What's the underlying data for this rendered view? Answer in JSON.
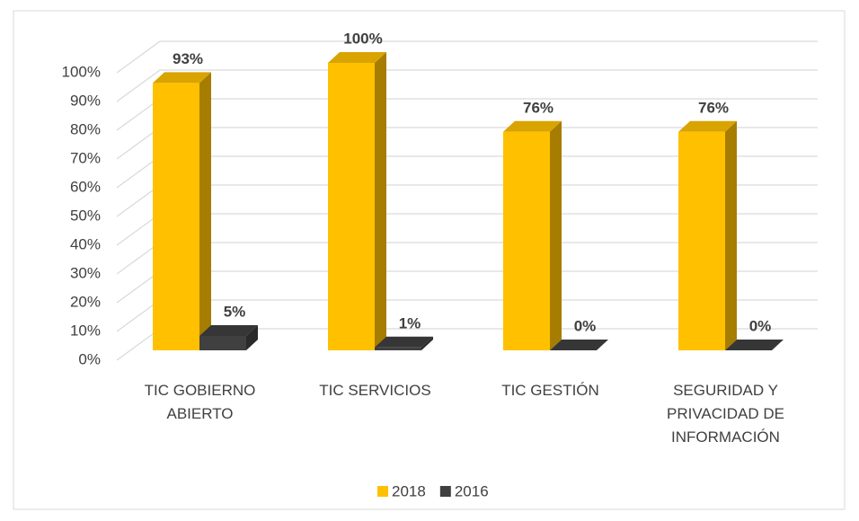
{
  "chart_data": {
    "type": "bar3d",
    "categories": [
      "TIC GOBIERNO ABIERTO",
      "TIC SERVICIOS",
      "TIC GESTIÓN",
      "SEGURIDAD Y PRIVACIDAD DE INFORMACIÓN"
    ],
    "series": [
      {
        "name": "2018",
        "color": "#FFC000",
        "values": [
          93,
          100,
          76,
          76
        ],
        "value_labels": [
          "93%",
          "100%",
          "76%",
          "76%"
        ]
      },
      {
        "name": "2016",
        "color": "#404040",
        "values": [
          5,
          1,
          0,
          0
        ],
        "value_labels": [
          "5%",
          "1%",
          "0%",
          "0%"
        ]
      }
    ],
    "ylim": [
      0,
      100
    ],
    "yticks": [
      {
        "value": 0,
        "label": "0%"
      },
      {
        "value": 10,
        "label": "10%"
      },
      {
        "value": 20,
        "label": "20%"
      },
      {
        "value": 30,
        "label": "30%"
      },
      {
        "value": 40,
        "label": "40%"
      },
      {
        "value": 50,
        "label": "50%"
      },
      {
        "value": 60,
        "label": "60%"
      },
      {
        "value": 70,
        "label": "70%"
      },
      {
        "value": 80,
        "label": "80%"
      },
      {
        "value": 90,
        "label": "90%"
      },
      {
        "value": 100,
        "label": "100%"
      }
    ],
    "grid": true,
    "legend": "bottom"
  }
}
